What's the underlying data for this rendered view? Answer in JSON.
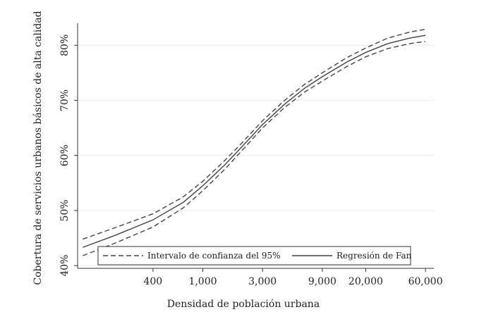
{
  "chart_data": {
    "type": "line",
    "xlabel": "Densidad de población urbana",
    "ylabel": "Cobertura de servicios urbanos básicos de alta calidad",
    "x_scale": "log",
    "xlim": [
      100,
      70000
    ],
    "ylim": [
      39.5,
      84
    ],
    "x_ticks": [
      400,
      1000,
      3000,
      9000,
      20000,
      60000
    ],
    "x_tick_labels": [
      "400",
      "1,000",
      "3,000",
      "9,000",
      "20,000",
      "60,000"
    ],
    "y_ticks": [
      40,
      50,
      60,
      70,
      80
    ],
    "y_tick_labels": [
      "40%",
      "50%",
      "60%",
      "70%",
      "80%"
    ],
    "grid": "horizontal",
    "legend_position": "bottom",
    "x": [
      110,
      200,
      400,
      700,
      1000,
      1500,
      2000,
      3000,
      4500,
      6500,
      9000,
      14000,
      20000,
      30000,
      45000,
      60000
    ],
    "series": [
      {
        "name": "Regresión de Fan",
        "style": "solid",
        "values": [
          43.3,
          45.5,
          48.3,
          51.5,
          54.5,
          58.3,
          61.3,
          65.6,
          69.3,
          72.2,
          74.3,
          76.9,
          78.7,
          80.3,
          81.3,
          81.8
        ]
      },
      {
        "name": "Intervalo de confianza del 95%",
        "style": "dashed",
        "values": [
          44.8,
          46.9,
          49.4,
          52.5,
          55.3,
          59.1,
          62.0,
          66.3,
          70.0,
          72.9,
          75.0,
          77.7,
          79.5,
          81.3,
          82.4,
          82.9
        ]
      },
      {
        "name": "",
        "style": "dashed",
        "values": [
          41.8,
          44.1,
          47.0,
          50.5,
          53.6,
          57.5,
          60.6,
          65.0,
          68.7,
          71.5,
          73.5,
          76.1,
          77.9,
          79.4,
          80.3,
          80.7
        ]
      }
    ],
    "legend": [
      {
        "label": "Intervalo de confianza del 95%",
        "style": "dashed"
      },
      {
        "label": "Regresión de Fan",
        "style": "solid"
      }
    ]
  }
}
